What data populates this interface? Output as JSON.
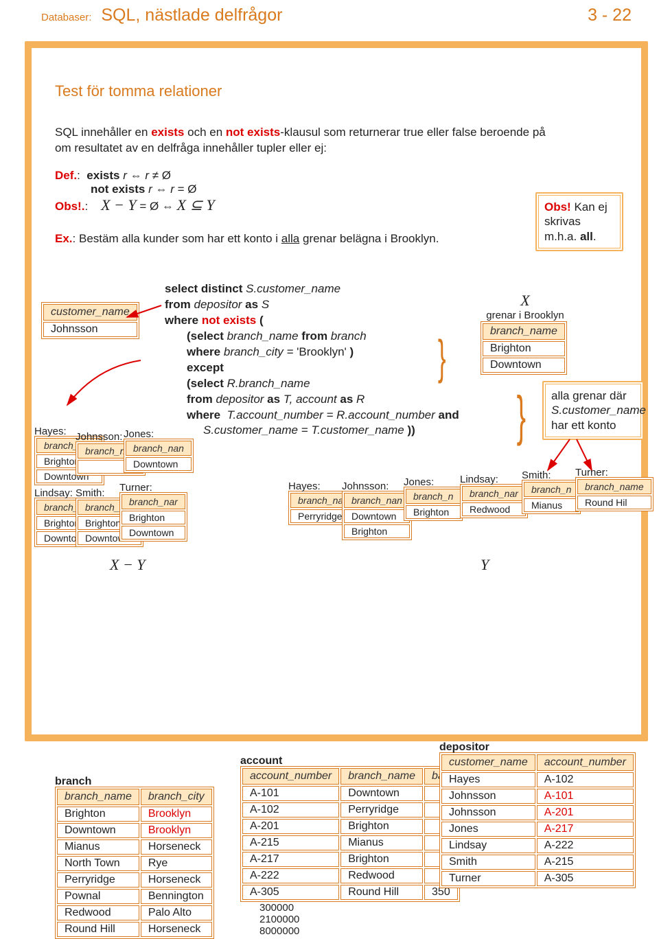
{
  "header": {
    "section": "Databaser:",
    "title": "SQL, nästlade delfrågor",
    "page": "3 - 22"
  },
  "h2": "Test för tomma relationer",
  "intro": {
    "pre": "SQL innehåller en ",
    "kw1": "exists",
    "mid": " och en ",
    "kw2": "not exists",
    "post": "-klausul som returnerar true eller false beroende på om resultatet av en delfråga innehåller tupler eller ej:"
  },
  "def": {
    "label": "Def.",
    "l1": "exists r ⇔ r ≠ Ø",
    "l2": "not exists r ⇔ r = Ø",
    "obs": "Obs!.",
    "l3": "X − Y = Ø ⇔ X ⊆ Y"
  },
  "sidenote": {
    "obs": "Obs!",
    "rest": " Kan ej skrivas m.h.a. ",
    "all": "all",
    "dot": "."
  },
  "ex": {
    "label": "Ex.",
    "text": ": Bestäm alla kunder som har ett konto i ",
    "under": "alla",
    "text2": " grenar belägna i Brooklyn."
  },
  "sql": {
    "l1a": "select distinct ",
    "l1b": "S.customer_name",
    "l2a": "from ",
    "l2b": "depositor ",
    "l2c": "as ",
    "l2d": "S",
    "l3a": "where ",
    "l3b": "not exists",
    "l3c": " (",
    "l4a": "(select ",
    "l4b": "branch_name ",
    "l4c": "from ",
    "l4d": "branch",
    "l5a": "where ",
    "l5b": "branch_city = ",
    "l5c": "'Brooklyn' ",
    "l5d": ")",
    "l6a": "except",
    "l7a": "(select ",
    "l7b": "R.branch_name",
    "l8a": "from ",
    "l8b": "depositor ",
    "l8c": "as ",
    "l8d": "T, account ",
    "l8e": "as ",
    "l8f": "R",
    "l9a": "where",
    "l9b": "T.account_number = R.account_number ",
    "l9c": "and",
    "l10a": "S.customer_name = T.customer_name ",
    "l10b": "))"
  },
  "note2": {
    "pre": "alla grenar där ",
    "mid": "S.customer_name",
    "post": " har ett konto"
  },
  "X_label": "X",
  "Y_label": "Y",
  "XmY_label": "X − Y",
  "X_caption": "grenar i Brooklyn",
  "Xtbl": {
    "h": "branch_name",
    "rows": [
      "Brighton",
      "Downtown"
    ]
  },
  "result": {
    "h": "customer_name",
    "rows": [
      "Johnsson"
    ]
  },
  "mini_left": [
    {
      "name": "Hayes:",
      "rows": [
        "Brighton",
        "Downtown"
      ]
    },
    {
      "name": "Johnsson:",
      "rows": [
        ""
      ]
    },
    {
      "name": "Jones:",
      "rows": [
        "Downtown"
      ]
    },
    {
      "name": "Lindsay:",
      "rows": [
        "Brighton",
        "Downtown"
      ]
    },
    {
      "name": "Smith:",
      "rows": [
        "Brighton",
        "Downtown"
      ]
    },
    {
      "name": "Turner:",
      "rows": [
        "Brighton",
        "Downtown"
      ]
    }
  ],
  "mini_right": [
    {
      "name": "Hayes:",
      "rows": [
        "Perryridge"
      ]
    },
    {
      "name": "Johnsson:",
      "rows": [
        "Downtown",
        "Brighton"
      ]
    },
    {
      "name": "Jones:",
      "rows": [
        "Brighton"
      ]
    },
    {
      "name": "Lindsay:",
      "rows": [
        "Redwood"
      ]
    },
    {
      "name": "Smith:",
      "rows": [
        "Mianus"
      ]
    },
    {
      "name": "Turner:",
      "rows": [
        "Round Hil"
      ]
    }
  ],
  "mini_h": "branch_name",
  "branch": {
    "title": "branch",
    "cols": [
      "branch_name",
      "branch_city"
    ],
    "rows": [
      [
        "Brighton",
        "Brooklyn",
        "red"
      ],
      [
        "Downtown",
        "Brooklyn",
        "red"
      ],
      [
        "Mianus",
        "Horseneck",
        ""
      ],
      [
        "North Town",
        "Rye",
        ""
      ],
      [
        "Perryridge",
        "Horseneck",
        ""
      ],
      [
        "Pownal",
        "Bennington",
        ""
      ],
      [
        "Redwood",
        "Palo Alto",
        ""
      ],
      [
        "Round Hill",
        "Horseneck",
        ""
      ]
    ]
  },
  "account": {
    "title": "account",
    "cols": [
      "account_number",
      "branch_name",
      "ba"
    ],
    "rows": [
      [
        "A-101",
        "Downtown",
        ""
      ],
      [
        "A-102",
        "Perryridge",
        ""
      ],
      [
        "A-201",
        "Brighton",
        ""
      ],
      [
        "A-215",
        "Mianus",
        ""
      ],
      [
        "A-217",
        "Brighton",
        ""
      ],
      [
        "A-222",
        "Redwood",
        ""
      ],
      [
        "A-305",
        "Round Hill",
        "350"
      ]
    ],
    "extra": [
      "300000",
      "2100000",
      "8000000"
    ]
  },
  "depositor": {
    "title": "depositor",
    "cols": [
      "customer_name",
      "account_number"
    ],
    "rows": [
      [
        "Hayes",
        "A-102",
        ""
      ],
      [
        "Johnsson",
        "A-101",
        "red"
      ],
      [
        "Johnsson",
        "A-201",
        "red"
      ],
      [
        "Jones",
        "A-217",
        "red"
      ],
      [
        "Lindsay",
        "A-222",
        ""
      ],
      [
        "Smith",
        "A-215",
        ""
      ],
      [
        "Turner",
        "A-305",
        ""
      ]
    ]
  }
}
